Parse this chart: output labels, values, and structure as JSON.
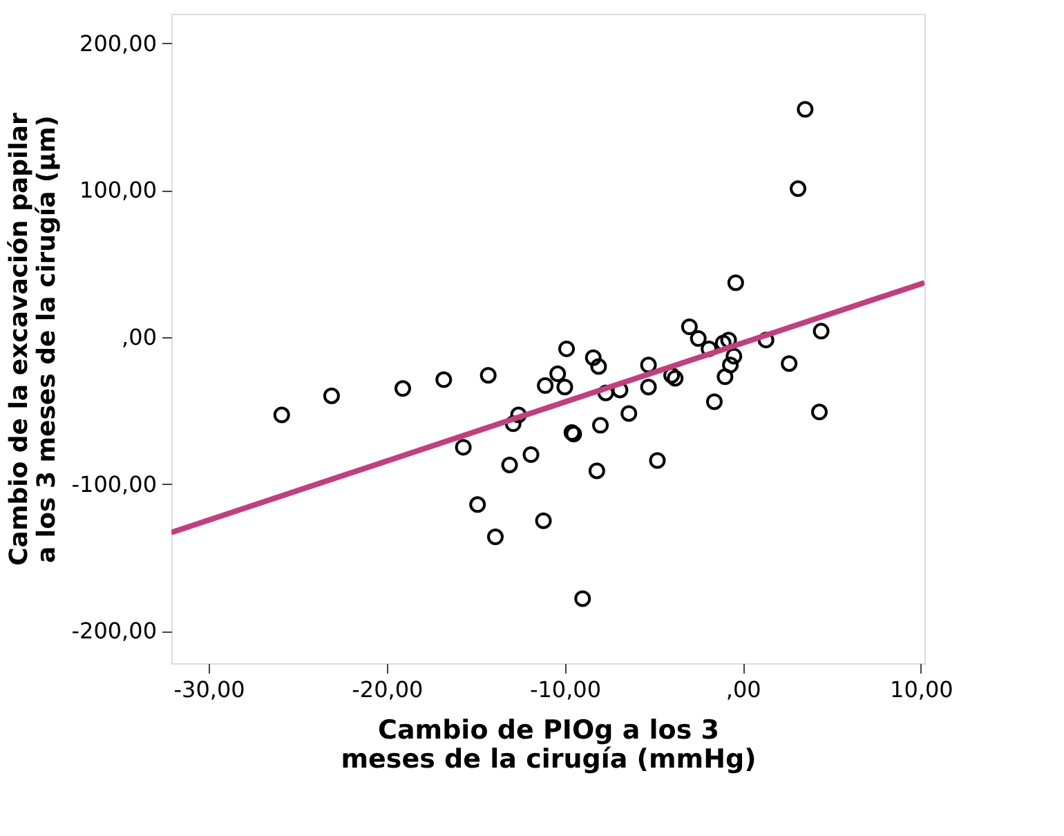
{
  "chart_data": {
    "type": "scatter",
    "xlabel": "Cambio de PIOg a los 3 meses de la cirugía (mmHg)",
    "ylabel": "Cambio de la excavación papilar a los 3 meses de la cirugía (µm)",
    "xlim": [
      -32.1,
      10.2
    ],
    "ylim": [
      -222,
      220
    ],
    "xticks": [
      {
        "value": -30,
        "label": "-30,00"
      },
      {
        "value": -20,
        "label": "-20,00"
      },
      {
        "value": -10,
        "label": "-10,00"
      },
      {
        "value": 0,
        "label": ",00"
      },
      {
        "value": 10,
        "label": "10,00"
      }
    ],
    "yticks": [
      {
        "value": -200,
        "label": "-200,00"
      },
      {
        "value": -100,
        "label": "-100,00"
      },
      {
        "value": 0,
        "label": ",00"
      },
      {
        "value": 100,
        "label": "100,00"
      },
      {
        "value": 200,
        "label": "200,00"
      }
    ],
    "grid": false,
    "marker": "circle",
    "series": [
      {
        "type": "scatter",
        "color": "#000000",
        "x": [
          3.5,
          3.1,
          -0.4,
          -3.0,
          4.4,
          -25.9,
          -23.1,
          -19.1,
          -16.8,
          -14.3,
          -11.1,
          -12.6,
          -12.9,
          -15.7,
          -11.9,
          -13.1,
          -14.9,
          -13.9,
          -11.2,
          -9.9,
          -10.4,
          -10.0,
          -8.4,
          -8.1,
          -5.3,
          -7.7,
          -6.9,
          -5.3,
          -4.0,
          -3.8,
          -6.4,
          -8.0,
          -9.6,
          -9.5,
          -8.2,
          -4.8,
          -9.0,
          -2.5,
          -1.9,
          -1.1,
          -0.8,
          -0.5,
          -0.7,
          -1.0,
          1.3,
          2.6,
          -1.6,
          4.3
        ],
        "values": [
          155,
          101,
          37,
          7,
          4,
          -53,
          -40,
          -35,
          -29,
          -26,
          -33,
          -53,
          -59,
          -75,
          -80,
          -87,
          -114,
          -136,
          -125,
          -8,
          -25,
          -34,
          -14,
          -20,
          -19,
          -38,
          -36,
          -34,
          -26,
          -28,
          -52,
          -60,
          -65,
          -66,
          -91,
          -84,
          -178,
          -1,
          -8,
          -4,
          -2,
          -13,
          -19,
          -27,
          -2,
          -18,
          -44,
          -51
        ]
      },
      {
        "type": "line",
        "marker": "none",
        "color": "#c0407f",
        "x": [
          -32.1,
          10.2
        ],
        "values": [
          -133,
          37
        ]
      }
    ]
  }
}
